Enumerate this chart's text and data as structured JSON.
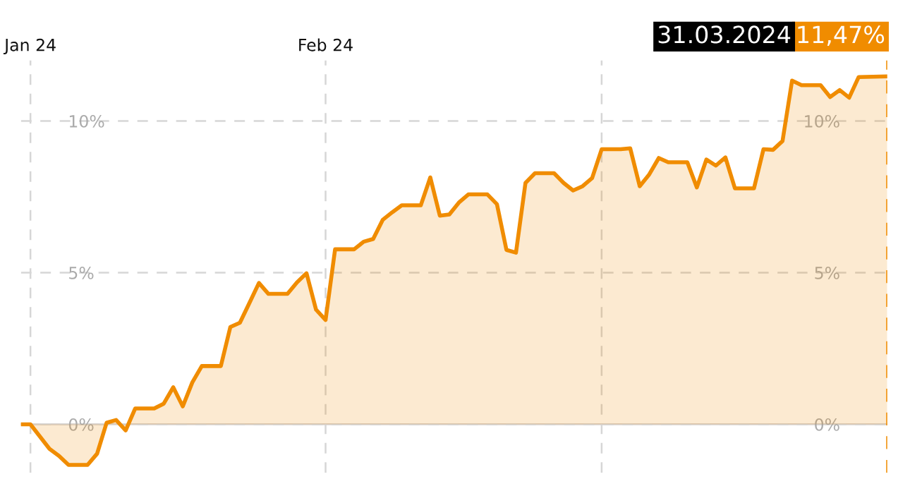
{
  "chart_data": {
    "type": "area",
    "x": [
      "2023-12-31",
      "2024-01-01",
      "2024-01-03",
      "2024-01-04",
      "2024-01-05",
      "2024-01-07",
      "2024-01-08",
      "2024-01-09",
      "2024-01-10",
      "2024-01-11",
      "2024-01-12",
      "2024-01-14",
      "2024-01-15",
      "2024-01-16",
      "2024-01-17",
      "2024-01-18",
      "2024-01-19",
      "2024-01-21",
      "2024-01-22",
      "2024-01-23",
      "2024-01-24",
      "2024-01-25",
      "2024-01-26",
      "2024-01-28",
      "2024-01-29",
      "2024-01-30",
      "2024-01-31",
      "2024-02-01",
      "2024-02-02",
      "2024-02-04",
      "2024-02-05",
      "2024-02-06",
      "2024-02-07",
      "2024-02-08",
      "2024-02-09",
      "2024-02-11",
      "2024-02-12",
      "2024-02-13",
      "2024-02-14",
      "2024-02-15",
      "2024-02-16",
      "2024-02-18",
      "2024-02-19",
      "2024-02-20",
      "2024-02-21",
      "2024-02-22",
      "2024-02-23",
      "2024-02-25",
      "2024-02-26",
      "2024-02-27",
      "2024-02-28",
      "2024-02-29",
      "2024-03-01",
      "2024-03-03",
      "2024-03-04",
      "2024-03-05",
      "2024-03-06",
      "2024-03-07",
      "2024-03-08",
      "2024-03-10",
      "2024-03-11",
      "2024-03-12",
      "2024-03-13",
      "2024-03-14",
      "2024-03-15",
      "2024-03-17",
      "2024-03-18",
      "2024-03-19",
      "2024-03-20",
      "2024-03-21",
      "2024-03-22",
      "2024-03-24",
      "2024-03-25",
      "2024-03-26",
      "2024-03-27",
      "2024-03-28",
      "2024-03-31"
    ],
    "series": [
      {
        "color": "#f08c00",
        "values": [
          0,
          0,
          -0.81,
          -1.04,
          -1.34,
          -1.34,
          -0.97,
          0.05,
          0.14,
          -0.2,
          0.52,
          0.52,
          0.68,
          1.22,
          0.59,
          1.38,
          1.92,
          1.92,
          3.21,
          3.35,
          4.0,
          4.66,
          4.3,
          4.3,
          4.68,
          4.98,
          3.78,
          3.44,
          5.77,
          5.77,
          6.02,
          6.11,
          6.74,
          6.99,
          7.22,
          7.22,
          8.14,
          6.88,
          6.92,
          7.31,
          7.58,
          7.58,
          7.26,
          5.75,
          5.66,
          7.96,
          8.28,
          8.28,
          7.96,
          7.71,
          7.85,
          8.12,
          9.07,
          9.07,
          9.1,
          7.85,
          8.24,
          8.78,
          8.64,
          8.64,
          7.81,
          8.73,
          8.53,
          8.8,
          7.78,
          7.78,
          9.07,
          9.05,
          9.34,
          11.33,
          11.18,
          11.18,
          10.79,
          11.02,
          10.77,
          11.45,
          11.47
        ]
      }
    ],
    "xlim": [
      "2023-12-31",
      "2024-03-31"
    ],
    "xticks": [
      {
        "value": "2024-01-01",
        "label": "Jan 24"
      },
      {
        "value": "2024-02-01",
        "label": "Feb 24"
      },
      {
        "value": "2024-03-01",
        "label": null
      }
    ],
    "ylim": [
      -1.6,
      12
    ],
    "yticks": [
      {
        "value": 0,
        "label": "0%"
      },
      {
        "value": 5,
        "label": "5%"
      },
      {
        "value": 10,
        "label": "10%"
      }
    ],
    "grid": true,
    "line_style": "solid",
    "ref_lines": [
      {
        "axis": "y",
        "value": 0,
        "color": "#d9d4d0",
        "line_style": "solid"
      },
      {
        "axis": "x",
        "value": "2024-03-31",
        "color": "#f08c00",
        "line_style": "dashed"
      }
    ],
    "annotations": [
      "31.03.2024",
      "11,47%"
    ]
  }
}
